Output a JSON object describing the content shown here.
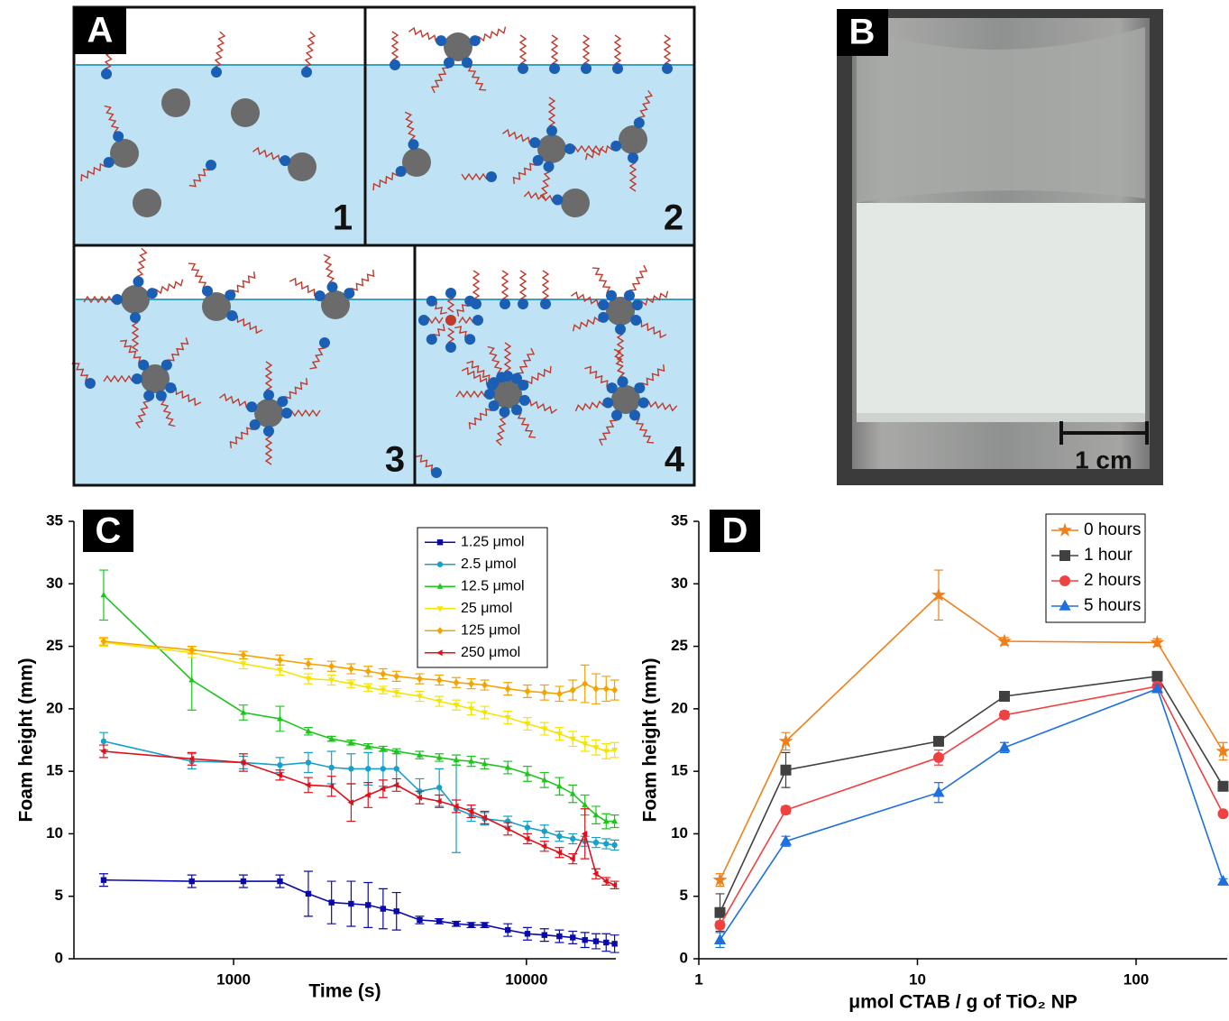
{
  "panels": {
    "A": {
      "label": "A",
      "subpanels": [
        "1",
        "2",
        "3",
        "4"
      ]
    },
    "B": {
      "label": "B",
      "scale_bar": "1 cm"
    }
  },
  "chart_data": [
    {
      "type": "line",
      "panel_label": "C",
      "xscale": "log",
      "xlabel": "Time (s)",
      "ylabel": "Foam height (mm)",
      "xlim": [
        285,
        20200
      ],
      "xticks": [
        1000,
        10000
      ],
      "ylim": [
        0,
        35
      ],
      "yticks": [
        0,
        5,
        10,
        15,
        20,
        25,
        30,
        35
      ],
      "legend": "upper center",
      "x": [
        360,
        720,
        1080,
        1440,
        1800,
        2160,
        2520,
        2880,
        3240,
        3600,
        4320,
        5040,
        5760,
        6480,
        7200,
        8640,
        10080,
        11520,
        12960,
        14400,
        15840,
        17280,
        18720,
        20000
      ],
      "series": [
        {
          "name": "1.25 μmol",
          "color": "#0a0aa8",
          "marker": "square",
          "values": [
            6.3,
            6.2,
            6.2,
            6.2,
            5.2,
            4.5,
            4.4,
            4.3,
            4.0,
            3.8,
            3.1,
            3.0,
            2.8,
            2.7,
            2.7,
            2.3,
            2.0,
            1.9,
            1.8,
            1.7,
            1.5,
            1.4,
            1.3,
            1.2
          ],
          "errors": [
            0.5,
            0.5,
            0.5,
            0.5,
            1.8,
            1.7,
            1.8,
            1.8,
            1.6,
            1.5,
            0.3,
            0.2,
            0.2,
            0.2,
            0.2,
            0.5,
            0.5,
            0.5,
            0.5,
            0.5,
            0.6,
            0.6,
            0.7,
            0.7
          ]
        },
        {
          "name": "2.5 μmol",
          "color": "#18a0c8",
          "marker": "circle",
          "values": [
            17.4,
            15.8,
            15.7,
            15.5,
            15.7,
            15.3,
            15.2,
            15.2,
            15.2,
            15.2,
            13.4,
            13.7,
            12.0,
            11.5,
            11.2,
            11.0,
            10.5,
            10.2,
            9.8,
            9.6,
            9.4,
            9.3,
            9.2,
            9.1
          ],
          "errors": [
            0.7,
            0.6,
            0.5,
            0.6,
            0.8,
            1.3,
            1.2,
            1.3,
            1.4,
            1.4,
            1.0,
            1.5,
            3.5,
            0.5,
            0.5,
            0.4,
            0.5,
            0.5,
            0.4,
            0.4,
            0.4,
            0.4,
            0.4,
            0.4
          ]
        },
        {
          "name": "12.5 μmol",
          "color": "#1fc41f",
          "marker": "triangle-up",
          "values": [
            29.1,
            22.3,
            19.7,
            19.2,
            18.2,
            17.6,
            17.3,
            17.0,
            16.8,
            16.6,
            16.3,
            16.1,
            15.9,
            15.8,
            15.6,
            15.3,
            14.8,
            14.3,
            13.8,
            13.2,
            12.3,
            11.5,
            11.0,
            11.0
          ],
          "errors": [
            2.0,
            2.4,
            0.6,
            1.0,
            0.3,
            0.2,
            0.2,
            0.2,
            0.2,
            0.2,
            0.3,
            0.3,
            0.4,
            0.4,
            0.4,
            0.5,
            0.6,
            0.6,
            0.7,
            0.7,
            0.8,
            0.7,
            0.6,
            0.5
          ]
        },
        {
          "name": "25 μmol",
          "color": "#f5e400",
          "marker": "triangle-down",
          "values": [
            25.3,
            24.5,
            23.6,
            23.1,
            22.4,
            22.3,
            22.0,
            21.7,
            21.5,
            21.3,
            21.0,
            20.6,
            20.3,
            20.0,
            19.7,
            19.3,
            18.8,
            18.4,
            18.0,
            17.6,
            17.2,
            16.9,
            16.6,
            16.7
          ],
          "errors": [
            0.3,
            0.4,
            0.4,
            0.4,
            0.4,
            0.4,
            0.3,
            0.3,
            0.3,
            0.3,
            0.4,
            0.4,
            0.4,
            0.5,
            0.5,
            0.5,
            0.5,
            0.5,
            0.5,
            0.6,
            0.6,
            0.6,
            0.6,
            0.6
          ]
        },
        {
          "name": "125 μmol",
          "color": "#f5a300",
          "marker": "diamond",
          "values": [
            25.4,
            24.7,
            24.3,
            23.9,
            23.6,
            23.4,
            23.2,
            23.0,
            22.8,
            22.6,
            22.4,
            22.3,
            22.1,
            22.0,
            21.9,
            21.6,
            21.4,
            21.3,
            21.2,
            21.5,
            22.0,
            21.6,
            21.6,
            21.5
          ],
          "errors": [
            0.3,
            0.3,
            0.3,
            0.4,
            0.4,
            0.4,
            0.4,
            0.4,
            0.4,
            0.4,
            0.4,
            0.4,
            0.4,
            0.4,
            0.4,
            0.5,
            0.5,
            0.6,
            0.6,
            0.8,
            1.5,
            1.2,
            1.0,
            0.8
          ]
        },
        {
          "name": "250 μmol",
          "color": "#e0101a",
          "marker": "triangle-left",
          "values": [
            16.6,
            16.0,
            15.7,
            14.7,
            13.9,
            13.8,
            12.5,
            13.1,
            13.6,
            13.9,
            12.9,
            12.6,
            12.2,
            11.8,
            11.3,
            10.4,
            9.6,
            9.0,
            8.5,
            8.0,
            10.0,
            6.8,
            6.2,
            5.9
          ],
          "errors": [
            0.5,
            0.5,
            0.7,
            0.4,
            0.6,
            0.8,
            1.5,
            1.0,
            0.7,
            0.5,
            0.5,
            0.5,
            0.5,
            0.5,
            0.5,
            0.5,
            0.4,
            0.4,
            0.4,
            0.4,
            2.0,
            0.4,
            0.3,
            0.3
          ]
        }
      ]
    },
    {
      "type": "line",
      "panel_label": "D",
      "xscale": "log",
      "xlabel": "μmol CTAB / g of TiO₂ NP",
      "ylabel": "Foam height (mm)",
      "xlim": [
        1,
        261
      ],
      "xticks": [
        1,
        10,
        100
      ],
      "ylim": [
        0,
        35
      ],
      "yticks": [
        0,
        5,
        10,
        15,
        20,
        25,
        30,
        35
      ],
      "legend": "upper right",
      "x": [
        1.25,
        2.5,
        12.5,
        25,
        125,
        250
      ],
      "series": [
        {
          "name": "0 hours",
          "color": "#f07f1a",
          "marker": "star",
          "values": [
            6.3,
            17.4,
            29.1,
            25.4,
            25.3,
            16.6
          ],
          "errors": [
            0.5,
            0.7,
            2.0,
            0.3,
            0.3,
            0.7
          ]
        },
        {
          "name": "1 hour",
          "color": "#404040",
          "marker": "square",
          "values": [
            3.7,
            15.1,
            17.4,
            21.0,
            22.6,
            13.8
          ],
          "errors": [
            1.5,
            1.4,
            0.3,
            0.2,
            0.2,
            0.2
          ]
        },
        {
          "name": "2 hours",
          "color": "#f04040",
          "marker": "circle",
          "values": [
            2.7,
            11.9,
            16.1,
            19.5,
            21.8,
            11.6
          ],
          "errors": [
            0.3,
            0.3,
            0.6,
            0.3,
            0.3,
            0.2
          ]
        },
        {
          "name": "5 hours",
          "color": "#1f6fdf",
          "marker": "triangle-up",
          "values": [
            1.5,
            9.4,
            13.3,
            16.9,
            21.6,
            6.2
          ],
          "errors": [
            0.6,
            0.4,
            0.8,
            0.4,
            0.3,
            0.2
          ]
        }
      ]
    }
  ]
}
